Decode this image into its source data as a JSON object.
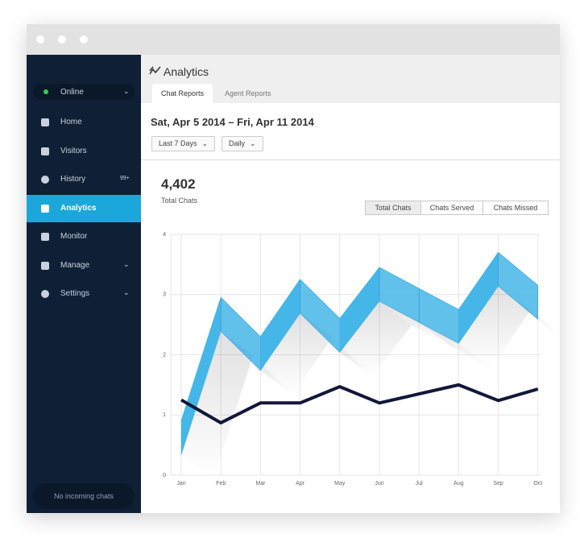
{
  "sidebar": {
    "status": "Online",
    "items": [
      {
        "label": "Home",
        "icon": "home"
      },
      {
        "label": "Visitors",
        "icon": "visitors"
      },
      {
        "label": "History",
        "icon": "history",
        "badge": "99+"
      },
      {
        "label": "Analytics",
        "icon": "analytics",
        "active": true
      },
      {
        "label": "Monitor",
        "icon": "monitor"
      },
      {
        "label": "Manage",
        "icon": "manage",
        "dropdown": true
      },
      {
        "label": "Settings",
        "icon": "settings",
        "dropdown": true
      }
    ],
    "footer": "No incoming chats"
  },
  "header": {
    "title": "Analytics",
    "tabs": [
      "Chat Reports",
      "Agent Reports"
    ],
    "active_tab": 0
  },
  "report": {
    "date_range": "Sat, Apr 5 2014 – Fri, Apr 11 2014",
    "filters": [
      "Last 7 Days",
      "Daily"
    ],
    "total": "4,402",
    "total_label": "Total Chats",
    "toggles": [
      "Total Chats",
      "Chats Served",
      "Chats Missed"
    ],
    "selected_toggle": 0
  },
  "chart_data": {
    "type": "line",
    "categories": [
      "Jan",
      "Feb",
      "Mar",
      "Apr",
      "May",
      "Jun",
      "Jul",
      "Aug",
      "Sep",
      "Oct"
    ],
    "series": [
      {
        "color": "#45b6e8",
        "style": "ribbon",
        "values": [
          0.9,
          2.95,
          2.3,
          3.25,
          2.6,
          3.45,
          3.1,
          2.75,
          3.7,
          3.15
        ]
      },
      {
        "color": "#12173a",
        "values": [
          1.25,
          0.87,
          1.2,
          1.2,
          1.47,
          1.2,
          1.35,
          1.5,
          1.24,
          1.43
        ]
      }
    ],
    "ylim": [
      0,
      4
    ],
    "yticks": [
      0,
      1,
      2,
      3,
      4
    ],
    "grid": true
  }
}
